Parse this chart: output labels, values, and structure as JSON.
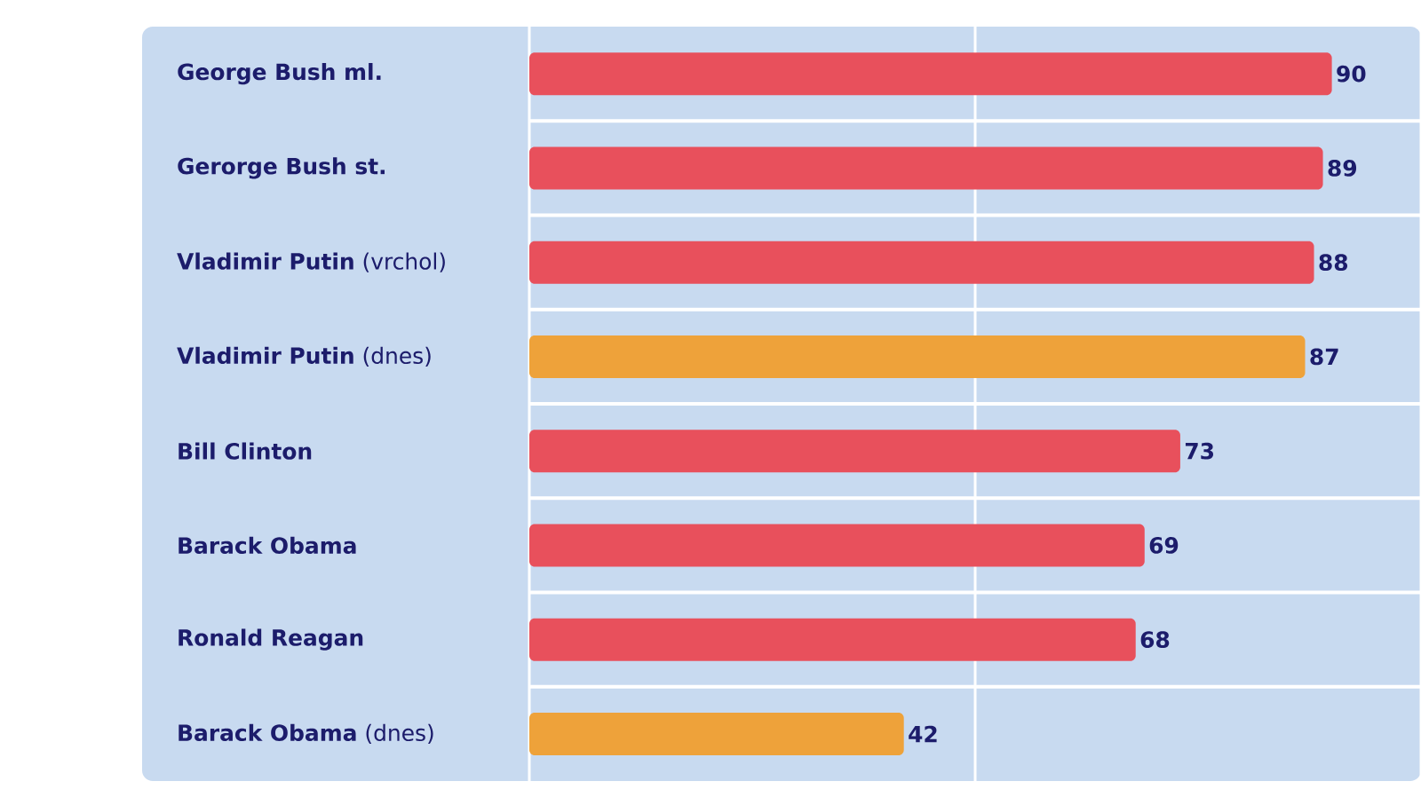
{
  "chart_data": {
    "type": "bar",
    "orientation": "horizontal",
    "categories": [
      "**George Bush ml.**",
      "**Gerorge Bush st.**",
      "**Vladimir Putin** (vrchol)",
      "**Vladimir Putin** (dnes)",
      "**Bill Clinton**",
      "**Barack Obama**",
      "**Ronald Reagan**",
      "**Barack Obama** (dnes)"
    ],
    "values": [
      90,
      89,
      88,
      87,
      73,
      69,
      68,
      42
    ],
    "colors": [
      "#e8505c",
      "#e8505c",
      "#e8505c",
      "#eea23a",
      "#e8505c",
      "#e8505c",
      "#e8505c",
      "#eea23a"
    ],
    "xlim": [
      0,
      100
    ],
    "ref_lines": [
      {
        "axis": "x",
        "value": 0,
        "color": "#ffffff"
      },
      {
        "axis": "x",
        "value": 50,
        "color": "#ffffff"
      },
      {
        "axis": "x",
        "value": 100,
        "color": "#ffffff"
      }
    ],
    "tick_labels": "y",
    "data_labels": true
  }
}
